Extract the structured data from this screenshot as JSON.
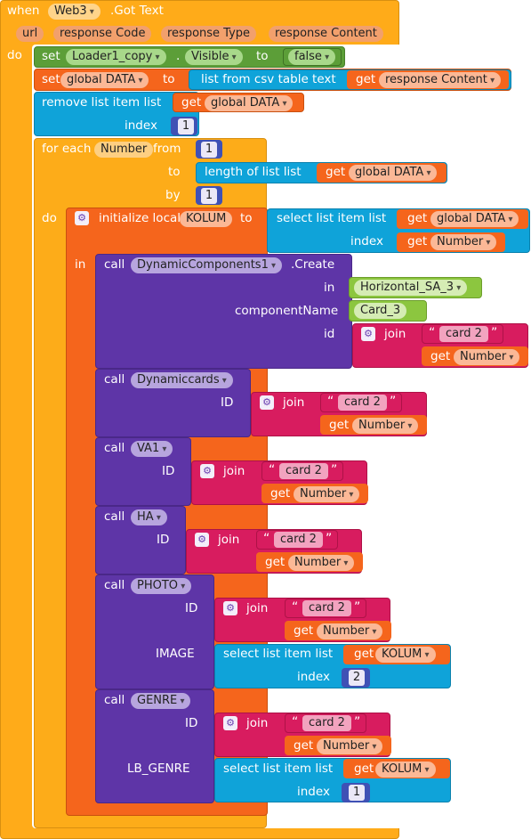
{
  "event": {
    "when": "when",
    "component": "Web3",
    "event_name": ".Got Text",
    "params": [
      "url",
      "response Code",
      "response Type",
      "response Content"
    ],
    "do": "do"
  },
  "set_loader": {
    "set": "set",
    "component": "Loader1_copy",
    "dot": ".",
    "property": "Visible",
    "to": "to",
    "value": "false"
  },
  "set_data": {
    "set": "set",
    "var": "global DATA",
    "to": "to",
    "csv": "list from csv table  text",
    "get": "get",
    "get_var": "response Content"
  },
  "remove": {
    "label": "remove list item  list",
    "get": "get",
    "get_var": "global DATA",
    "index": "index",
    "index_val": "1"
  },
  "foreach": {
    "label": "for each",
    "var": "Number",
    "from": "from",
    "from_val": "1",
    "to": "to",
    "length": "length of list  list",
    "get": "get",
    "get_var": "global DATA",
    "by": "by",
    "by_val": "1",
    "do": "do"
  },
  "local": {
    "init": "initialize local",
    "var": "KOLUM",
    "to": "to",
    "select": "select list item  list",
    "get": "get",
    "get_var": "global DATA",
    "index": "index",
    "index_get": "get",
    "index_var": "Number",
    "in": "in"
  },
  "create": {
    "call": "call",
    "component": "DynamicComponents1",
    "method": ".Create",
    "in": "in",
    "in_val": "Horizontal_SA_3",
    "cname": "componentName",
    "cname_val": "Card_3",
    "id": "id",
    "join": "join",
    "str": "card 2",
    "get": "get",
    "get_var": "Number"
  },
  "calls": [
    {
      "call": "call",
      "component": "Dynamiccards",
      "param": "ID",
      "join": "join",
      "str": "card 2",
      "get": "get",
      "get_var": "Number"
    },
    {
      "call": "call",
      "component": "VA1",
      "param": "ID",
      "join": "join",
      "str": "card 2",
      "get": "get",
      "get_var": "Number"
    },
    {
      "call": "call",
      "component": "HA",
      "param": "ID",
      "join": "join",
      "str": "card 2",
      "get": "get",
      "get_var": "Number"
    },
    {
      "call": "call",
      "component": "PHOTO",
      "param": "ID",
      "join": "join",
      "str": "card 2",
      "get": "get",
      "get_var": "Number",
      "param2": "IMAGE",
      "select": "select list item  list",
      "get2": "get",
      "get2_var": "KOLUM",
      "index": "index",
      "index_val": "2"
    },
    {
      "call": "call",
      "component": "GENRE",
      "param": "ID",
      "join": "join",
      "str": "card 2",
      "get": "get",
      "get_var": "Number",
      "param2": "LB_GENRE",
      "select": "select list item  list",
      "get2": "get",
      "get2_var": "KOLUM",
      "index": "index",
      "index_val": "1"
    }
  ],
  "colors": {
    "event": "#ffab19",
    "component": "#5c9e38",
    "variable": "#f5651c",
    "list": "#0fa3d9",
    "math": "#3f51b5",
    "text": "#d81c5f",
    "procedure": "#5e35a7",
    "control": "#fdac19"
  }
}
